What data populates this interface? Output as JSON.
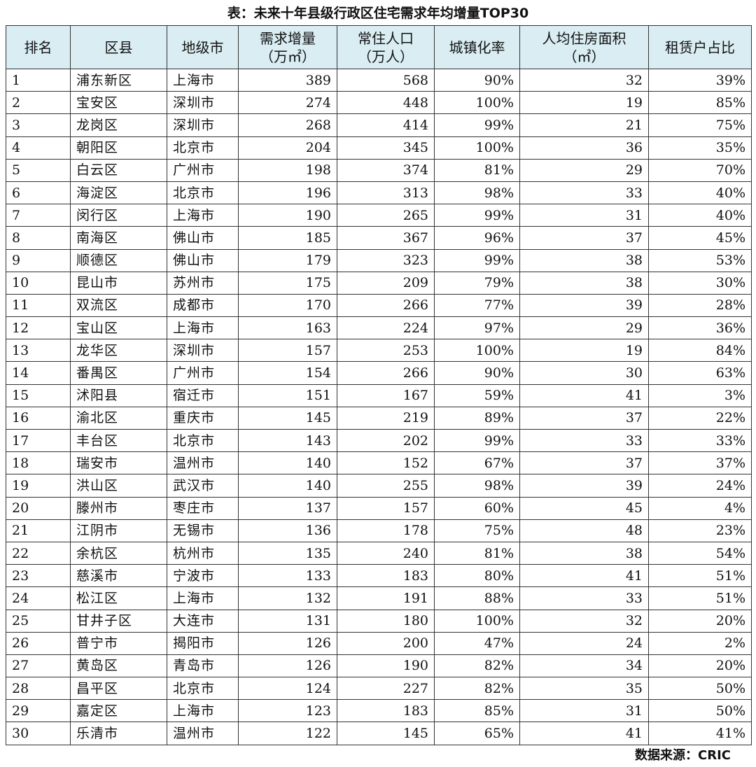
{
  "title": "表：未来十年县级行政区住宅需求年均增量TOP30",
  "headers": {
    "rank": "排名",
    "district": "区县",
    "city": "地级市",
    "demand_line1": "需求增量",
    "demand_line2": "（万㎡）",
    "population_line1": "常住人口",
    "population_line2": "（万人）",
    "urbanization": "城镇化率",
    "area_line1": "人均住房面积",
    "area_line2": "（㎡）",
    "rental": "租赁户占比"
  },
  "rows": [
    {
      "rank": "1",
      "district": "浦东新区",
      "city": "上海市",
      "demand": "389",
      "population": "568",
      "urbanization": "90%",
      "area": "32",
      "rental": "39%"
    },
    {
      "rank": "2",
      "district": "宝安区",
      "city": "深圳市",
      "demand": "274",
      "population": "448",
      "urbanization": "100%",
      "area": "19",
      "rental": "85%"
    },
    {
      "rank": "3",
      "district": "龙岗区",
      "city": "深圳市",
      "demand": "268",
      "population": "414",
      "urbanization": "99%",
      "area": "21",
      "rental": "75%"
    },
    {
      "rank": "4",
      "district": "朝阳区",
      "city": "北京市",
      "demand": "204",
      "population": "345",
      "urbanization": "100%",
      "area": "36",
      "rental": "35%"
    },
    {
      "rank": "5",
      "district": "白云区",
      "city": "广州市",
      "demand": "198",
      "population": "374",
      "urbanization": "81%",
      "area": "29",
      "rental": "70%"
    },
    {
      "rank": "6",
      "district": "海淀区",
      "city": "北京市",
      "demand": "196",
      "population": "313",
      "urbanization": "98%",
      "area": "33",
      "rental": "40%"
    },
    {
      "rank": "7",
      "district": "闵行区",
      "city": "上海市",
      "demand": "190",
      "population": "265",
      "urbanization": "99%",
      "area": "31",
      "rental": "40%"
    },
    {
      "rank": "8",
      "district": "南海区",
      "city": "佛山市",
      "demand": "185",
      "population": "367",
      "urbanization": "96%",
      "area": "37",
      "rental": "45%"
    },
    {
      "rank": "9",
      "district": "顺德区",
      "city": "佛山市",
      "demand": "179",
      "population": "323",
      "urbanization": "99%",
      "area": "38",
      "rental": "53%"
    },
    {
      "rank": "10",
      "district": "昆山市",
      "city": "苏州市",
      "demand": "175",
      "population": "209",
      "urbanization": "79%",
      "area": "38",
      "rental": "30%"
    },
    {
      "rank": "11",
      "district": "双流区",
      "city": "成都市",
      "demand": "170",
      "population": "266",
      "urbanization": "77%",
      "area": "39",
      "rental": "28%"
    },
    {
      "rank": "12",
      "district": "宝山区",
      "city": "上海市",
      "demand": "163",
      "population": "224",
      "urbanization": "97%",
      "area": "29",
      "rental": "36%"
    },
    {
      "rank": "13",
      "district": "龙华区",
      "city": "深圳市",
      "demand": "157",
      "population": "253",
      "urbanization": "100%",
      "area": "19",
      "rental": "84%"
    },
    {
      "rank": "14",
      "district": "番禺区",
      "city": "广州市",
      "demand": "154",
      "population": "266",
      "urbanization": "90%",
      "area": "30",
      "rental": "63%"
    },
    {
      "rank": "15",
      "district": "沭阳县",
      "city": "宿迁市",
      "demand": "151",
      "population": "167",
      "urbanization": "59%",
      "area": "41",
      "rental": "3%"
    },
    {
      "rank": "16",
      "district": "渝北区",
      "city": "重庆市",
      "demand": "145",
      "population": "219",
      "urbanization": "89%",
      "area": "37",
      "rental": "22%"
    },
    {
      "rank": "17",
      "district": "丰台区",
      "city": "北京市",
      "demand": "143",
      "population": "202",
      "urbanization": "99%",
      "area": "33",
      "rental": "33%"
    },
    {
      "rank": "18",
      "district": "瑞安市",
      "city": "温州市",
      "demand": "140",
      "population": "152",
      "urbanization": "67%",
      "area": "37",
      "rental": "37%"
    },
    {
      "rank": "19",
      "district": "洪山区",
      "city": "武汉市",
      "demand": "140",
      "population": "255",
      "urbanization": "98%",
      "area": "39",
      "rental": "24%"
    },
    {
      "rank": "20",
      "district": "滕州市",
      "city": "枣庄市",
      "demand": "137",
      "population": "157",
      "urbanization": "60%",
      "area": "45",
      "rental": "4%"
    },
    {
      "rank": "21",
      "district": "江阴市",
      "city": "无锡市",
      "demand": "136",
      "population": "178",
      "urbanization": "75%",
      "area": "48",
      "rental": "23%"
    },
    {
      "rank": "22",
      "district": "余杭区",
      "city": "杭州市",
      "demand": "135",
      "population": "240",
      "urbanization": "81%",
      "area": "38",
      "rental": "54%"
    },
    {
      "rank": "23",
      "district": "慈溪市",
      "city": "宁波市",
      "demand": "133",
      "population": "183",
      "urbanization": "80%",
      "area": "41",
      "rental": "51%"
    },
    {
      "rank": "24",
      "district": "松江区",
      "city": "上海市",
      "demand": "132",
      "population": "191",
      "urbanization": "88%",
      "area": "33",
      "rental": "51%"
    },
    {
      "rank": "25",
      "district": "甘井子区",
      "city": "大连市",
      "demand": "131",
      "population": "180",
      "urbanization": "100%",
      "area": "32",
      "rental": "20%"
    },
    {
      "rank": "26",
      "district": "普宁市",
      "city": "揭阳市",
      "demand": "126",
      "population": "200",
      "urbanization": "47%",
      "area": "24",
      "rental": "2%"
    },
    {
      "rank": "27",
      "district": "黄岛区",
      "city": "青岛市",
      "demand": "126",
      "population": "190",
      "urbanization": "82%",
      "area": "34",
      "rental": "20%"
    },
    {
      "rank": "28",
      "district": "昌平区",
      "city": "北京市",
      "demand": "124",
      "population": "227",
      "urbanization": "82%",
      "area": "35",
      "rental": "50%"
    },
    {
      "rank": "29",
      "district": "嘉定区",
      "city": "上海市",
      "demand": "123",
      "population": "183",
      "urbanization": "85%",
      "area": "31",
      "rental": "50%"
    },
    {
      "rank": "30",
      "district": "乐清市",
      "city": "温州市",
      "demand": "122",
      "population": "145",
      "urbanization": "65%",
      "area": "41",
      "rental": "41%"
    }
  ],
  "source": "数据来源：CRIC",
  "colors": {
    "header_bg": "#d9edf2",
    "border": "#333333"
  }
}
